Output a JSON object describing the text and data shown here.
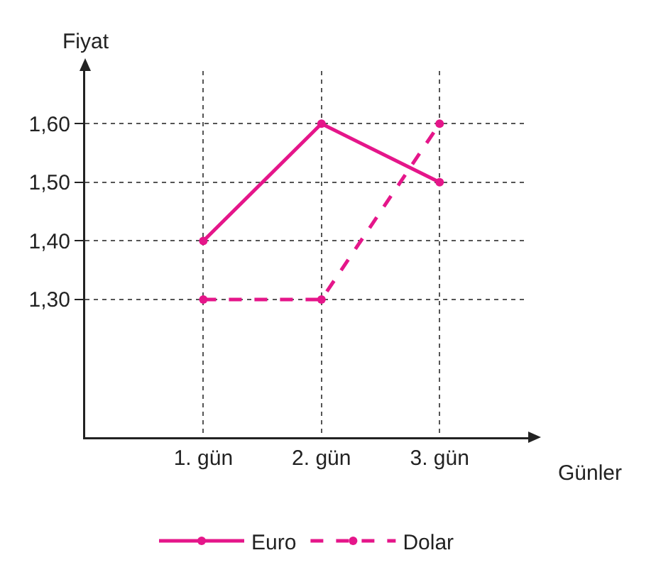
{
  "chart_data": {
    "type": "line",
    "xlabel": "Günler",
    "ylabel": "Fiyat",
    "categories": [
      "1. gün",
      "2. gün",
      "3. gün"
    ],
    "series": [
      {
        "name": "Euro",
        "color": "#e5168a",
        "values": [
          1.4,
          1.6,
          1.5
        ],
        "line_style": "solid"
      },
      {
        "name": "Dolar",
        "color": "#e5168a",
        "values": [
          1.3,
          1.3,
          1.6
        ],
        "line_style": "dashed"
      }
    ],
    "ylim": [
      1.065,
      1.69
    ],
    "yticks": [
      {
        "value": 1.3,
        "label": "1,30"
      },
      {
        "value": 1.4,
        "label": "1,40"
      },
      {
        "value": 1.5,
        "label": "1,50"
      },
      {
        "value": 1.6,
        "label": "1,60"
      }
    ],
    "grid": true,
    "legend": "bottom",
    "marker": "circle"
  }
}
